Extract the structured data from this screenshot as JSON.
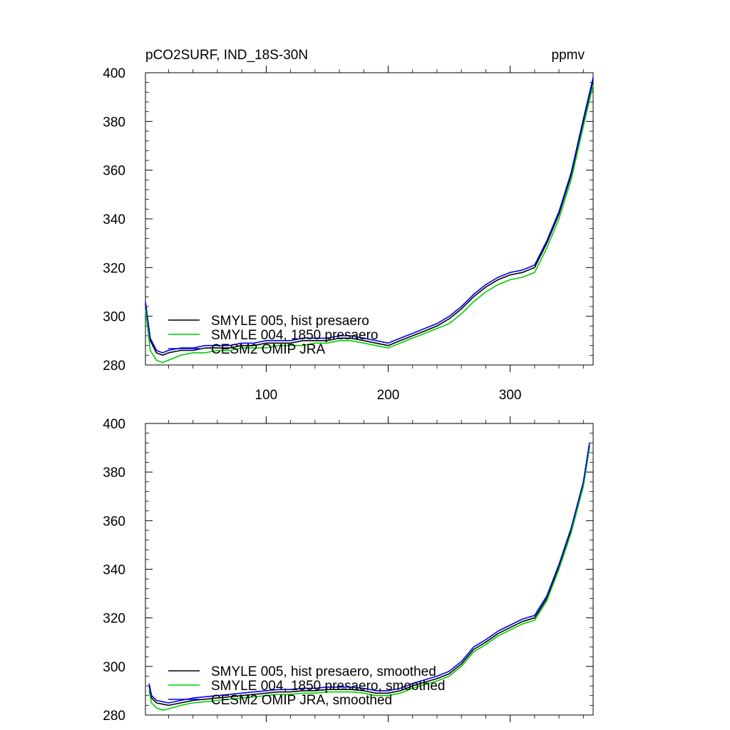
{
  "title_left": "pCO2SURF, IND_18S-30N",
  "title_right": "ppmv",
  "colors": {
    "smyle005": "#000000",
    "smyle004": "#00cc00",
    "omip": "#0000ee"
  },
  "chart_data": [
    {
      "type": "line",
      "panel": "top",
      "xlim": [
        1,
        368
      ],
      "ylim": [
        280,
        400
      ],
      "xticks": [
        100,
        200,
        300
      ],
      "yticks": [
        280,
        300,
        320,
        340,
        360,
        380,
        400
      ],
      "xtick_labels": [
        "100",
        "200",
        "300"
      ],
      "ytick_labels": [
        "280",
        "300",
        "320",
        "340",
        "360",
        "380",
        "400"
      ],
      "legend_position": "bottom-left",
      "x": [
        1,
        5,
        10,
        15,
        20,
        30,
        40,
        50,
        60,
        70,
        80,
        90,
        100,
        110,
        120,
        130,
        140,
        150,
        160,
        170,
        180,
        190,
        200,
        210,
        220,
        230,
        240,
        250,
        260,
        270,
        280,
        290,
        300,
        310,
        320,
        330,
        340,
        350,
        360,
        368
      ],
      "series": [
        {
          "name": "SMYLE 005, hist presaero",
          "color": "#000000",
          "values": [
            305,
            290,
            285,
            284,
            285,
            286,
            286,
            287,
            287,
            287,
            288,
            288,
            289,
            289,
            289,
            290,
            290,
            290,
            291,
            291,
            290,
            289,
            288,
            290,
            292,
            294,
            296,
            299,
            303,
            308,
            312,
            315,
            317,
            318,
            320,
            330,
            342,
            358,
            380,
            397
          ]
        },
        {
          "name": "SMYLE 004, 1850 presaero",
          "color": "#00cc00",
          "values": [
            303,
            286,
            282,
            281,
            282,
            284,
            285,
            285,
            286,
            286,
            287,
            287,
            287,
            288,
            288,
            288,
            289,
            289,
            290,
            290,
            289,
            288,
            287,
            289,
            291,
            293,
            295,
            297,
            301,
            306,
            310,
            313,
            315,
            316,
            318,
            328,
            340,
            356,
            378,
            395
          ]
        },
        {
          "name": "CESM2 OMIP JRA",
          "color": "#0000ee",
          "values": [
            306,
            291,
            286,
            285,
            286,
            287,
            287,
            288,
            288,
            288,
            289,
            289,
            290,
            290,
            290,
            291,
            291,
            291,
            292,
            292,
            291,
            290,
            289,
            291,
            293,
            295,
            297,
            300,
            304,
            309,
            313,
            316,
            318,
            319,
            321,
            331,
            343,
            359,
            381,
            398
          ]
        }
      ]
    },
    {
      "type": "line",
      "panel": "bottom",
      "xlim": [
        1,
        368
      ],
      "ylim": [
        280,
        400
      ],
      "xticks": [
        100,
        200,
        300
      ],
      "yticks": [
        280,
        300,
        320,
        340,
        360,
        380,
        400
      ],
      "xtick_labels": [],
      "ytick_labels": [
        "280",
        "300",
        "320",
        "340",
        "360",
        "380",
        "400"
      ],
      "legend_position": "bottom-left",
      "x": [
        4,
        6,
        10,
        15,
        20,
        30,
        40,
        50,
        60,
        70,
        80,
        90,
        100,
        110,
        120,
        130,
        140,
        150,
        160,
        170,
        180,
        190,
        200,
        210,
        220,
        230,
        240,
        250,
        260,
        270,
        280,
        290,
        300,
        310,
        320,
        330,
        340,
        350,
        360,
        365
      ],
      "series": [
        {
          "name": "SMYLE 005, hist presaero, smoothed",
          "color": "#000000",
          "values": [
            292,
            287,
            285,
            284.5,
            284,
            285,
            286,
            286.5,
            287,
            287.5,
            288,
            288.5,
            289,
            289.5,
            289.5,
            290,
            290,
            290.5,
            290.5,
            290.5,
            290,
            289,
            289,
            290,
            292,
            293.5,
            295,
            297,
            301,
            307,
            310,
            313.5,
            316,
            318.5,
            320,
            328,
            341,
            356,
            375,
            391
          ]
        },
        {
          "name": "SMYLE 004, 1850 presaero, smoothed",
          "color": "#00cc00",
          "values": [
            290,
            285,
            283,
            282,
            282.5,
            284,
            285,
            285.5,
            286,
            286.5,
            287,
            287.5,
            288,
            288.5,
            288.5,
            289,
            289,
            289.5,
            289.5,
            289.5,
            289,
            288,
            288,
            289,
            291,
            292.5,
            294,
            296,
            300,
            306,
            309,
            312.5,
            315,
            317.5,
            319,
            327,
            340,
            355,
            374,
            390
          ]
        },
        {
          "name": "CESM2 OMIP JRA, smoothed",
          "color": "#0000ee",
          "values": [
            293,
            288,
            286,
            285.5,
            285,
            286,
            287,
            287.5,
            288,
            288.5,
            289,
            289.5,
            290,
            290.5,
            290.5,
            291,
            291,
            291.5,
            291.5,
            291.5,
            291,
            290,
            290,
            291,
            293,
            294.5,
            296,
            298,
            302,
            308,
            311,
            314.5,
            317,
            319.5,
            321,
            329,
            342,
            357,
            376,
            392
          ]
        }
      ]
    }
  ]
}
